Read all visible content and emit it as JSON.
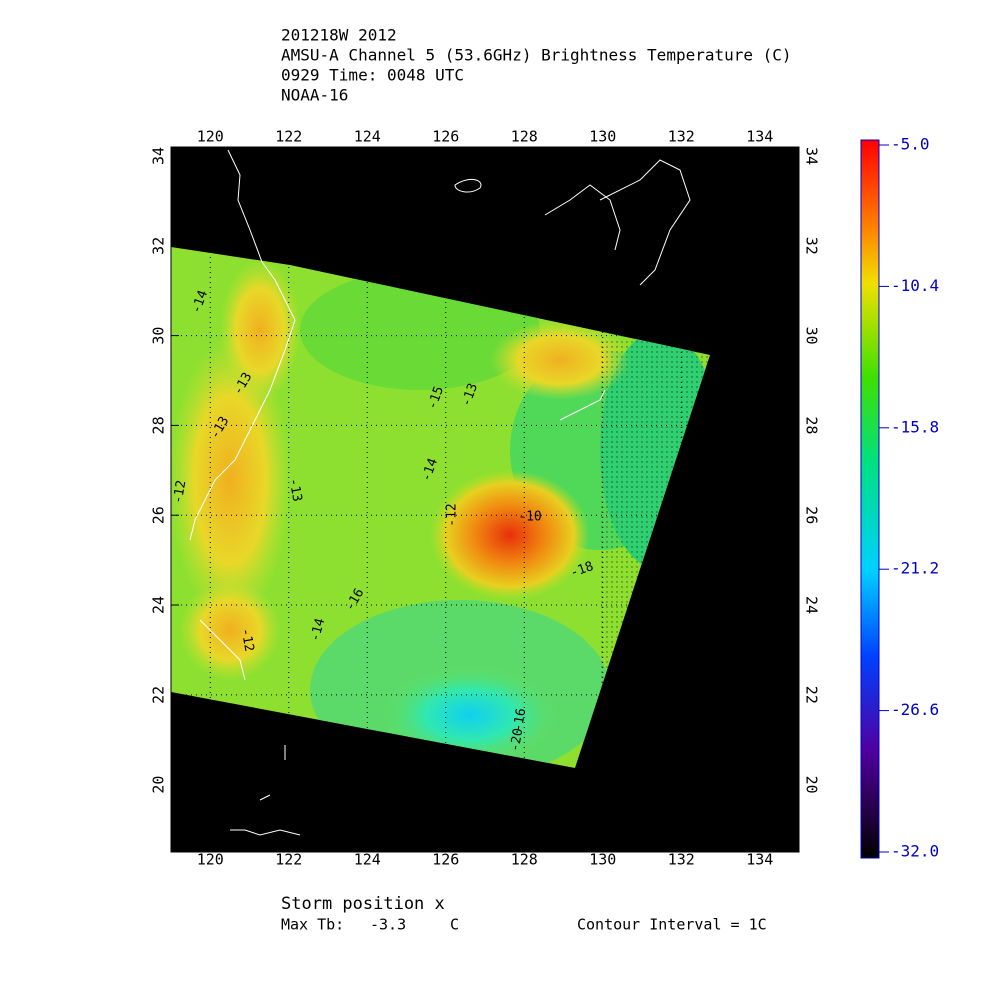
{
  "header": {
    "lines": [
      "201218W 2012",
      "AMSU-A Channel 5 (53.6GHz) Brightness Temperature (C)",
      "0929 Time: 0048 UTC",
      "NOAA-16"
    ]
  },
  "map": {
    "lon_range": [
      119,
      135
    ],
    "lat_range": [
      18.5,
      34.2
    ],
    "lon_ticks": [
      120,
      122,
      124,
      126,
      128,
      130,
      132,
      134
    ],
    "lat_ticks": [
      20,
      22,
      24,
      26,
      28,
      30,
      32,
      34
    ],
    "contour_labels": [
      "-14",
      "-13",
      "-13",
      "-12",
      "-13",
      "-12",
      "-15",
      "-13",
      "-14",
      "-12",
      "-10",
      "-16",
      "-14",
      "-16",
      "-20",
      "-18"
    ]
  },
  "colorbar": {
    "range": [
      -32,
      -5
    ],
    "ticks": [
      {
        "value": -5,
        "label": "-5.0"
      },
      {
        "value": -10.4,
        "label": "-10.4"
      },
      {
        "value": -15.8,
        "label": "-15.8"
      },
      {
        "value": -21.2,
        "label": "-21.2"
      },
      {
        "value": -26.6,
        "label": "-26.6"
      },
      {
        "value": -32,
        "label": "-32.0"
      }
    ]
  },
  "footer": {
    "storm": "Storm position x",
    "max_label": "Max Tb:",
    "max_value": -3.3,
    "max_unit": "C",
    "interval": "Contour Interval = 1C"
  }
}
